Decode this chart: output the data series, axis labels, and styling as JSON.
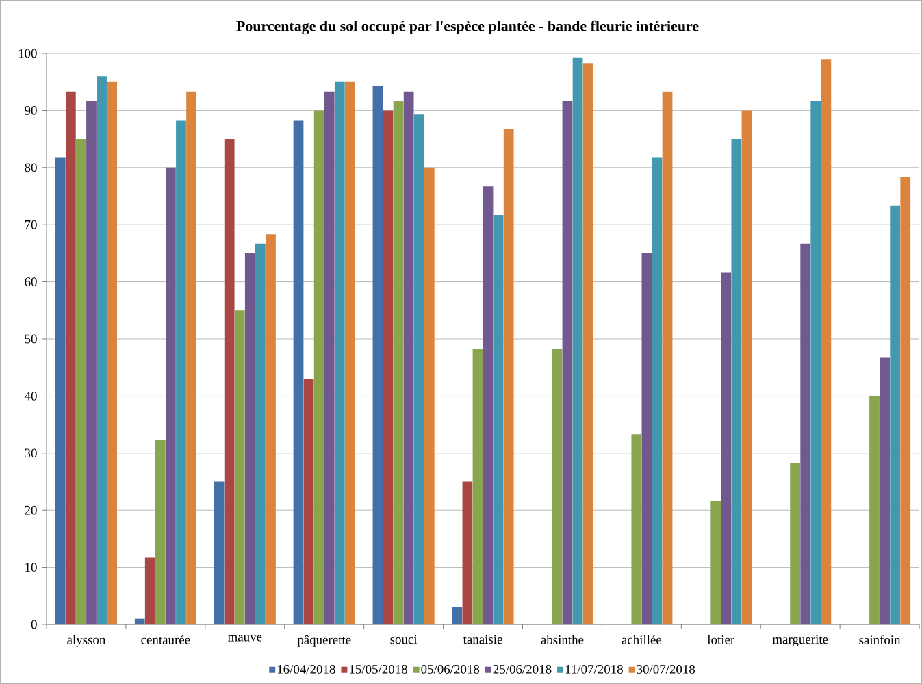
{
  "chart_data": {
    "type": "bar",
    "title": "Pourcentage du sol occupé par l'espèce plantée - bande fleurie intérieure",
    "categories": [
      "alysson",
      "centaurée",
      "mauve",
      "pâquerette",
      "souci",
      "tanaisie",
      "absinthe",
      "achillée",
      "lotier",
      "marguerite",
      "sainfoin"
    ],
    "series": [
      {
        "name": "16/04/2018",
        "color": "#4470a8",
        "values": [
          81.7,
          1,
          25,
          88.3,
          94.3,
          3,
          0,
          0,
          0,
          0,
          0
        ]
      },
      {
        "name": "15/05/2018",
        "color": "#aa4643",
        "values": [
          93.3,
          11.7,
          85,
          43,
          90,
          25,
          0,
          0,
          0,
          0,
          0
        ]
      },
      {
        "name": "05/06/2018",
        "color": "#89a54e",
        "values": [
          85,
          32.3,
          55,
          90,
          91.7,
          48.3,
          48.3,
          33.3,
          21.7,
          28.3,
          40
        ]
      },
      {
        "name": "25/06/2018",
        "color": "#71588f",
        "values": [
          91.7,
          80,
          65,
          93.3,
          93.3,
          76.7,
          91.7,
          65,
          61.7,
          66.7,
          46.7
        ]
      },
      {
        "name": "11/07/2018",
        "color": "#4198af",
        "values": [
          96,
          88.3,
          66.7,
          95,
          89.3,
          71.7,
          99.3,
          81.7,
          85,
          91.7,
          73.3
        ]
      },
      {
        "name": "30/07/2018",
        "color": "#db843d",
        "values": [
          95,
          93.3,
          68.3,
          95,
          80,
          86.7,
          98.3,
          93.3,
          90,
          99,
          78.3
        ]
      }
    ],
    "ylim": [
      0,
      100
    ],
    "yticks": [
      0,
      10,
      20,
      30,
      40,
      50,
      60,
      70,
      80,
      90,
      100
    ],
    "grid": "y",
    "legend": "bottom"
  }
}
